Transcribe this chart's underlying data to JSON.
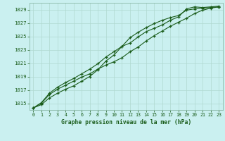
{
  "xlabel": "Graphe pression niveau de la mer (hPa)",
  "background_color": "#caf0f0",
  "plot_bg_color": "#caf0f0",
  "grid_color": "#b0d8d0",
  "line_color": "#1a5c1a",
  "spine_color": "#8ab8a8",
  "xmin": -0.5,
  "xmax": 23.5,
  "ymin": 1014,
  "ymax": 1030,
  "yticks": [
    1015,
    1017,
    1019,
    1021,
    1023,
    1025,
    1027,
    1029
  ],
  "xticks": [
    0,
    1,
    2,
    3,
    4,
    5,
    6,
    7,
    8,
    9,
    10,
    11,
    12,
    13,
    14,
    15,
    16,
    17,
    18,
    19,
    20,
    21,
    22,
    23
  ],
  "line1": [
    1014.3,
    1014.8,
    1015.8,
    1016.5,
    1017.1,
    1017.6,
    1018.3,
    1019.0,
    1020.0,
    1021.3,
    1022.2,
    1023.5,
    1024.8,
    1025.6,
    1026.3,
    1026.9,
    1027.4,
    1027.8,
    1028.1,
    1028.9,
    1029.1,
    1029.2,
    1029.3,
    1029.4
  ],
  "line2": [
    1014.3,
    1015.0,
    1016.3,
    1017.1,
    1017.7,
    1018.3,
    1018.9,
    1019.4,
    1020.1,
    1020.7,
    1021.2,
    1021.8,
    1022.7,
    1023.4,
    1024.3,
    1025.1,
    1025.8,
    1026.5,
    1027.1,
    1027.7,
    1028.4,
    1028.9,
    1029.2,
    1029.4
  ],
  "line3": [
    1014.3,
    1015.1,
    1016.5,
    1017.4,
    1018.1,
    1018.7,
    1019.4,
    1020.1,
    1020.9,
    1021.9,
    1022.7,
    1023.5,
    1024.0,
    1024.9,
    1025.7,
    1026.2,
    1026.7,
    1027.4,
    1027.9,
    1029.1,
    1029.4,
    1029.3,
    1029.4,
    1029.5
  ]
}
